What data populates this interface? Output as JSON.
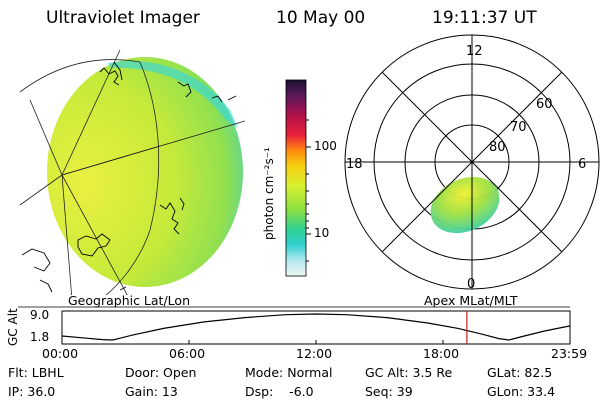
{
  "header": {
    "title": "Ultraviolet Imager",
    "date": "10 May 00",
    "time": "19:11:37 UT"
  },
  "geo_panel": {
    "label": "Geographic Lat/Lon"
  },
  "colorbar": {
    "unit_label": "photon cm⁻²s⁻¹",
    "ticks": [
      "100",
      "10"
    ],
    "colors": [
      "#2b1a3a",
      "#5a1a5a",
      "#a0104a",
      "#e0203a",
      "#ff7a10",
      "#f7d010",
      "#d7f030",
      "#8ee040",
      "#30d080",
      "#30d0d0",
      "#a0e8ee",
      "#e8f4f4"
    ]
  },
  "polar_panel": {
    "label": "Apex MLat/MLT",
    "mlt_labels": {
      "top": "12",
      "bottom": "0",
      "left": "18",
      "right": "6"
    },
    "lat_labels": [
      "60",
      "70",
      "80"
    ]
  },
  "timeline": {
    "axis_label": "GC Alt",
    "y_ticks": [
      "9.0",
      "1.8"
    ],
    "x_ticks": [
      "00:00",
      "06:00",
      "12:00",
      "18:00",
      "23:59"
    ],
    "current_time_fraction": 0.797,
    "curve": [
      {
        "t": 0.0,
        "alt": 2.9
      },
      {
        "t": 0.04,
        "alt": 2.4
      },
      {
        "t": 0.08,
        "alt": 1.9
      },
      {
        "t": 0.1,
        "alt": 1.8
      },
      {
        "t": 0.14,
        "alt": 3.2
      },
      {
        "t": 0.2,
        "alt": 5.0
      },
      {
        "t": 0.28,
        "alt": 6.8
      },
      {
        "t": 0.36,
        "alt": 8.0
      },
      {
        "t": 0.44,
        "alt": 8.8
      },
      {
        "t": 0.5,
        "alt": 9.0
      },
      {
        "t": 0.56,
        "alt": 8.8
      },
      {
        "t": 0.64,
        "alt": 8.0
      },
      {
        "t": 0.72,
        "alt": 6.5
      },
      {
        "t": 0.78,
        "alt": 5.0
      },
      {
        "t": 0.83,
        "alt": 3.3
      },
      {
        "t": 0.86,
        "alt": 2.2
      },
      {
        "t": 0.88,
        "alt": 1.8
      },
      {
        "t": 0.91,
        "alt": 2.9
      },
      {
        "t": 0.95,
        "alt": 4.3
      },
      {
        "t": 1.0,
        "alt": 5.7
      }
    ]
  },
  "info": {
    "flt": "Flt: LBHL",
    "ip": "IP: 36.0",
    "door": "Door: Open",
    "gain": "Gain: 13",
    "mode": "Mode: Normal",
    "dsp": "Dsp:    -6.0",
    "gcalt": "GC Alt: 3.5 Re",
    "seq": "Seq: 39",
    "glat": "GLat: 82.5",
    "glon": "GLon: 33.4"
  }
}
